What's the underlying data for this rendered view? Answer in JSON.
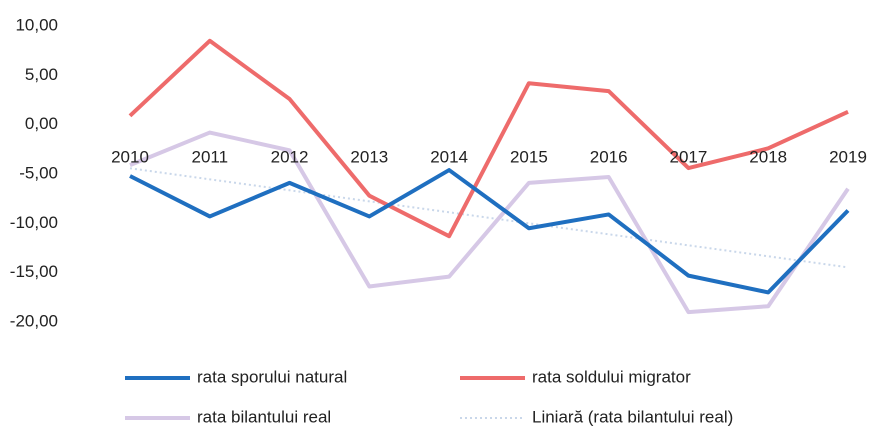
{
  "chart_data": {
    "type": "line",
    "categories": [
      "2010",
      "2011",
      "2012",
      "2013",
      "2014",
      "2015",
      "2016",
      "2017",
      "2018",
      "2019"
    ],
    "series": [
      {
        "name": "rata sporului natural",
        "color": "#1f6fc0",
        "style": "solid",
        "values": [
          -5.2,
          -9.3,
          -5.9,
          -9.3,
          -4.6,
          -10.5,
          -9.1,
          -15.3,
          -17.0,
          -8.7
        ]
      },
      {
        "name": "rata soldului migrator",
        "color": "#ee6b6b",
        "style": "solid",
        "values": [
          0.9,
          8.5,
          2.6,
          -7.2,
          -11.3,
          4.2,
          3.4,
          -4.4,
          -2.4,
          1.3
        ]
      },
      {
        "name": "rata bilantului real",
        "color": "#d6c8e6",
        "style": "solid",
        "values": [
          -4.1,
          -0.8,
          -2.6,
          -16.4,
          -15.4,
          -5.9,
          -5.3,
          -19.0,
          -18.4,
          -6.5
        ]
      },
      {
        "name": "Liniară (rata bilantului real)",
        "color": "#c9d7ea",
        "style": "dotted",
        "values": [
          -4.42,
          -5.54,
          -6.65,
          -7.77,
          -8.88,
          -10.0,
          -11.11,
          -12.23,
          -13.34,
          -14.46
        ]
      }
    ],
    "ylim": [
      -20,
      10
    ],
    "yticks": [
      {
        "value": 10,
        "label": "10,00"
      },
      {
        "value": 5,
        "label": "5,00"
      },
      {
        "value": 0,
        "label": "0,00"
      },
      {
        "value": -5,
        "label": "-5,00"
      },
      {
        "value": -10,
        "label": "-10,00"
      },
      {
        "value": -15,
        "label": "-15,00"
      },
      {
        "value": -20,
        "label": "-20,00"
      }
    ],
    "grid": false,
    "legend": "bottom"
  }
}
